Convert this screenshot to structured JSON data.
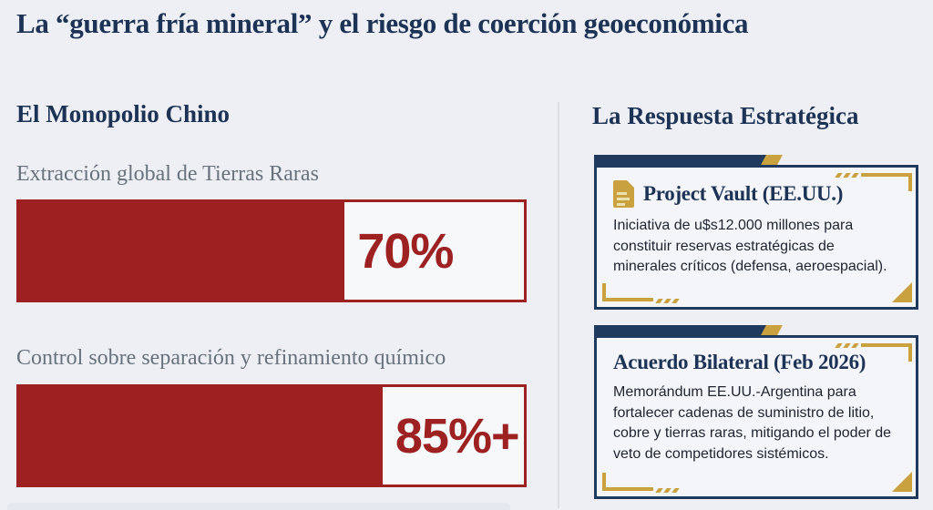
{
  "title": "La “guerra fría mineral” y el riesgo de coerción geoeconómica",
  "colors": {
    "background": "#edeff4",
    "navy": "#1d3356",
    "red": "#9e2121",
    "gold": "#c9a23f",
    "label_gray": "#67727d"
  },
  "left": {
    "heading": "El Monopolio Chino",
    "bars": [
      {
        "label": "Extracción global de Tierras Raras",
        "value_label": "70%",
        "fill_pct": 64.5
      },
      {
        "label": "Control sobre separación y refinamiento químico",
        "value_label": "85%+",
        "fill_pct": 72
      }
    ]
  },
  "right": {
    "heading": "La Respuesta Estratégica",
    "cards": [
      {
        "icon": "document-icon",
        "title": "Project Vault (EE.UU.)",
        "body": "Iniciativa de u$s12.000 millones para constituir reservas estratégicas de minerales críticos (defensa, aeroespacial)."
      },
      {
        "title": "Acuerdo Bilateral (Feb 2026)",
        "body": "Memorándum EE.UU.-Argentina para fortalecer cadenas de suministro de litio, cobre y tierras raras, mitigando el poder de veto de competidores sistémicos."
      }
    ]
  },
  "chart_data": {
    "type": "bar",
    "title": "El Monopolio Chino",
    "categories": [
      "Extracción global de Tierras Raras",
      "Control sobre separación y refinamiento químico"
    ],
    "values": [
      70,
      85
    ],
    "value_labels": [
      "70%",
      "85%+"
    ],
    "bar_color": "#9e2121",
    "bar_fill_pct": [
      64.5,
      72
    ],
    "xlabel": "",
    "ylabel": "",
    "orientation": "horizontal",
    "grid": false,
    "legend": false
  }
}
